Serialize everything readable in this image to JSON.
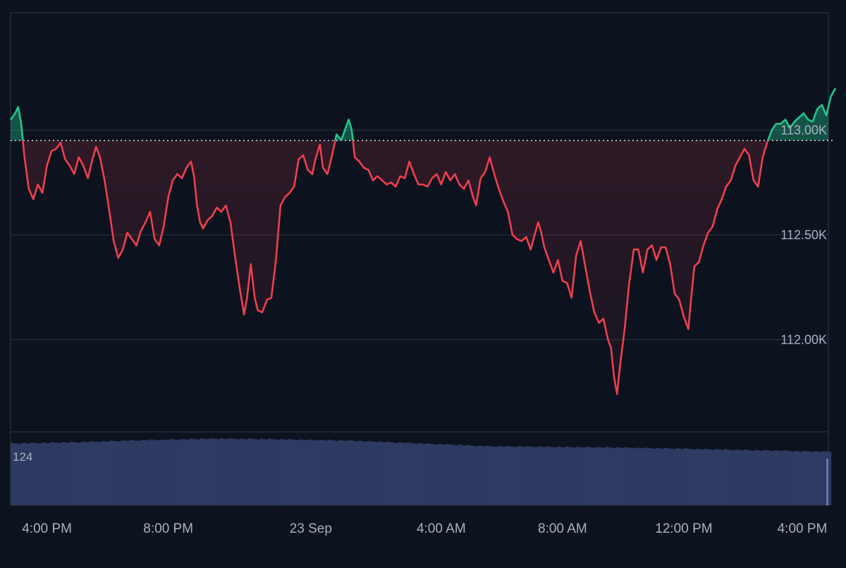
{
  "colors": {
    "background": "#0c131f",
    "grid": "#2a3444",
    "frame": "#2f3a4b",
    "axis_text": "#a7b1c2",
    "up": "#22c58b",
    "down": "#ef3f4f",
    "volume": "#2e3a62",
    "baseline": "#d9dde3"
  },
  "chart_data": {
    "type": "line",
    "baseline_value": 112950,
    "ylim": [
      111560,
      113560
    ],
    "y_ticks": [
      {
        "value": 113000,
        "label": "113.00K"
      },
      {
        "value": 112500,
        "label": "112.50K"
      },
      {
        "value": 112000,
        "label": "112.00K"
      }
    ],
    "x_ticks": [
      {
        "value": 0.0,
        "label": "4:00 PM"
      },
      {
        "value": 4.0,
        "label": "8:00 PM"
      },
      {
        "value": 8.7,
        "label": "23 Sep"
      },
      {
        "value": 13.0,
        "label": "4:00 AM"
      },
      {
        "value": 17.0,
        "label": "8:00 AM"
      },
      {
        "value": 21.0,
        "label": "12:00 PM"
      },
      {
        "value": 25.0,
        "label": "4:00 PM"
      }
    ],
    "xlim": [
      -1.2,
      26.0
    ],
    "x_unit": "hours from 4:00 PM",
    "grid": true,
    "series": [
      {
        "points": [
          [
            -1.2,
            113050
          ],
          [
            -1.05,
            113080
          ],
          [
            -0.95,
            113110
          ],
          [
            -0.85,
            113030
          ],
          [
            -0.75,
            112880
          ],
          [
            -0.6,
            112720
          ],
          [
            -0.45,
            112670
          ],
          [
            -0.3,
            112740
          ],
          [
            -0.15,
            112700
          ],
          [
            -0.0,
            112830
          ],
          [
            0.15,
            112900
          ],
          [
            0.3,
            112910
          ],
          [
            0.45,
            112940
          ],
          [
            0.6,
            112860
          ],
          [
            0.75,
            112830
          ],
          [
            0.9,
            112790
          ],
          [
            1.05,
            112870
          ],
          [
            1.2,
            112830
          ],
          [
            1.35,
            112770
          ],
          [
            1.5,
            112860
          ],
          [
            1.62,
            112920
          ],
          [
            1.75,
            112870
          ],
          [
            1.9,
            112760
          ],
          [
            2.05,
            112620
          ],
          [
            2.2,
            112470
          ],
          [
            2.35,
            112390
          ],
          [
            2.5,
            112430
          ],
          [
            2.65,
            112510
          ],
          [
            2.8,
            112480
          ],
          [
            2.95,
            112450
          ],
          [
            3.1,
            112520
          ],
          [
            3.25,
            112560
          ],
          [
            3.4,
            112610
          ],
          [
            3.55,
            112480
          ],
          [
            3.7,
            112450
          ],
          [
            3.85,
            112540
          ],
          [
            4.0,
            112680
          ],
          [
            4.15,
            112760
          ],
          [
            4.3,
            112790
          ],
          [
            4.45,
            112770
          ],
          [
            4.6,
            112820
          ],
          [
            4.75,
            112850
          ],
          [
            4.85,
            112780
          ],
          [
            4.95,
            112640
          ],
          [
            5.05,
            112560
          ],
          [
            5.15,
            112530
          ],
          [
            5.3,
            112570
          ],
          [
            5.45,
            112590
          ],
          [
            5.6,
            112630
          ],
          [
            5.75,
            112610
          ],
          [
            5.9,
            112640
          ],
          [
            6.05,
            112560
          ],
          [
            6.2,
            112400
          ],
          [
            6.35,
            112250
          ],
          [
            6.5,
            112120
          ],
          [
            6.6,
            112200
          ],
          [
            6.72,
            112360
          ],
          [
            6.85,
            112200
          ],
          [
            6.95,
            112140
          ],
          [
            7.1,
            112130
          ],
          [
            7.25,
            112190
          ],
          [
            7.4,
            112200
          ],
          [
            7.55,
            112380
          ],
          [
            7.7,
            112640
          ],
          [
            7.85,
            112680
          ],
          [
            8.0,
            112700
          ],
          [
            8.15,
            112730
          ],
          [
            8.3,
            112860
          ],
          [
            8.45,
            112880
          ],
          [
            8.6,
            112810
          ],
          [
            8.75,
            112790
          ],
          [
            8.85,
            112860
          ],
          [
            9.0,
            112930
          ],
          [
            9.1,
            112820
          ],
          [
            9.25,
            112790
          ],
          [
            9.4,
            112880
          ],
          [
            9.55,
            112980
          ],
          [
            9.7,
            112950
          ],
          [
            9.85,
            113010
          ],
          [
            9.95,
            113050
          ],
          [
            10.05,
            113000
          ],
          [
            10.15,
            112870
          ],
          [
            10.3,
            112850
          ],
          [
            10.45,
            112820
          ],
          [
            10.6,
            112810
          ],
          [
            10.75,
            112760
          ],
          [
            10.9,
            112780
          ],
          [
            11.05,
            112760
          ],
          [
            11.2,
            112740
          ],
          [
            11.35,
            112750
          ],
          [
            11.5,
            112730
          ],
          [
            11.65,
            112780
          ],
          [
            11.8,
            112770
          ],
          [
            11.95,
            112850
          ],
          [
            12.1,
            112790
          ],
          [
            12.25,
            112740
          ],
          [
            12.4,
            112740
          ],
          [
            12.55,
            112730
          ],
          [
            12.7,
            112770
          ],
          [
            12.85,
            112790
          ],
          [
            13.0,
            112740
          ],
          [
            13.15,
            112800
          ],
          [
            13.3,
            112760
          ],
          [
            13.45,
            112790
          ],
          [
            13.6,
            112740
          ],
          [
            13.75,
            112720
          ],
          [
            13.9,
            112760
          ],
          [
            14.05,
            112680
          ],
          [
            14.15,
            112640
          ],
          [
            14.3,
            112770
          ],
          [
            14.45,
            112800
          ],
          [
            14.6,
            112870
          ],
          [
            14.75,
            112790
          ],
          [
            14.9,
            112720
          ],
          [
            15.05,
            112660
          ],
          [
            15.2,
            112610
          ],
          [
            15.35,
            112500
          ],
          [
            15.5,
            112480
          ],
          [
            15.65,
            112470
          ],
          [
            15.8,
            112490
          ],
          [
            15.95,
            112430
          ],
          [
            16.1,
            112510
          ],
          [
            16.2,
            112560
          ],
          [
            16.3,
            112510
          ],
          [
            16.4,
            112440
          ],
          [
            16.55,
            112380
          ],
          [
            16.7,
            112320
          ],
          [
            16.85,
            112380
          ],
          [
            17.0,
            112280
          ],
          [
            17.15,
            112270
          ],
          [
            17.3,
            112200
          ],
          [
            17.45,
            112400
          ],
          [
            17.6,
            112470
          ],
          [
            17.75,
            112350
          ],
          [
            17.9,
            112230
          ],
          [
            18.05,
            112130
          ],
          [
            18.2,
            112080
          ],
          [
            18.35,
            112100
          ],
          [
            18.5,
            112000
          ],
          [
            18.6,
            111960
          ],
          [
            18.7,
            111820
          ],
          [
            18.8,
            111740
          ],
          [
            18.9,
            111880
          ],
          [
            19.05,
            112050
          ],
          [
            19.2,
            112270
          ],
          [
            19.35,
            112430
          ],
          [
            19.5,
            112430
          ],
          [
            19.65,
            112320
          ],
          [
            19.8,
            112430
          ],
          [
            19.95,
            112450
          ],
          [
            20.1,
            112380
          ],
          [
            20.25,
            112440
          ],
          [
            20.4,
            112440
          ],
          [
            20.55,
            112360
          ],
          [
            20.7,
            112220
          ],
          [
            20.85,
            112190
          ],
          [
            21.0,
            112110
          ],
          [
            21.15,
            112050
          ],
          [
            21.25,
            112210
          ],
          [
            21.35,
            112350
          ],
          [
            21.5,
            112370
          ],
          [
            21.65,
            112450
          ],
          [
            21.8,
            112510
          ],
          [
            21.95,
            112540
          ],
          [
            22.1,
            112620
          ],
          [
            22.25,
            112670
          ],
          [
            22.4,
            112730
          ],
          [
            22.55,
            112760
          ],
          [
            22.7,
            112830
          ],
          [
            22.85,
            112870
          ],
          [
            23.0,
            112910
          ],
          [
            23.15,
            112880
          ],
          [
            23.3,
            112760
          ],
          [
            23.45,
            112730
          ],
          [
            23.6,
            112870
          ],
          [
            23.75,
            112940
          ],
          [
            23.9,
            113000
          ],
          [
            24.05,
            113030
          ],
          [
            24.2,
            113030
          ],
          [
            24.35,
            113050
          ],
          [
            24.5,
            113010
          ],
          [
            24.65,
            113040
          ],
          [
            24.8,
            113060
          ],
          [
            24.95,
            113080
          ],
          [
            25.1,
            113050
          ],
          [
            25.25,
            113040
          ],
          [
            25.4,
            113100
          ],
          [
            25.55,
            113120
          ],
          [
            25.7,
            113070
          ],
          [
            25.85,
            113160
          ],
          [
            26.0,
            113200
          ]
        ]
      }
    ],
    "volume_label": "124",
    "volume_level_fraction": [
      0.9,
      0.92,
      0.95,
      0.97,
      0.96,
      0.94,
      0.9,
      0.86,
      0.85,
      0.84,
      0.82,
      0.8,
      0.78
    ]
  }
}
